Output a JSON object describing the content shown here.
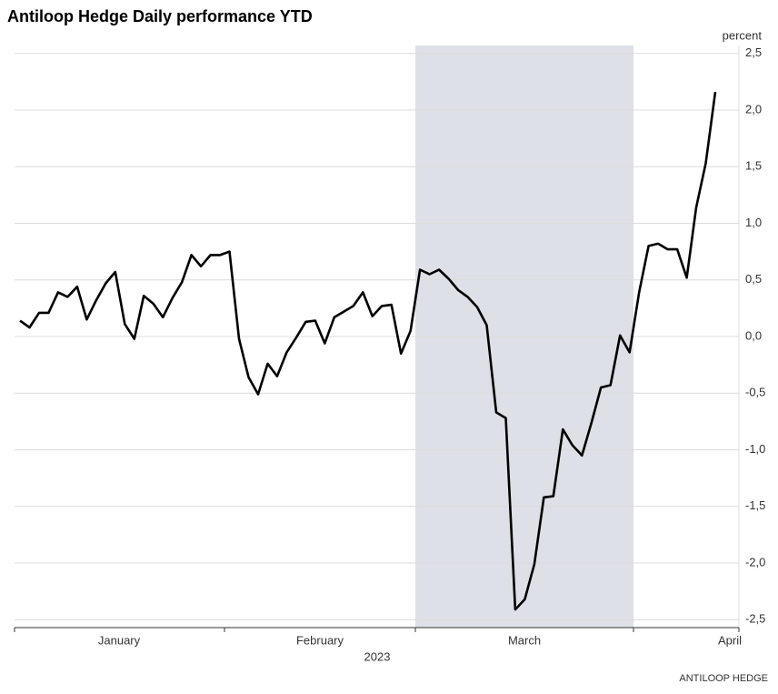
{
  "chart_data": {
    "type": "line",
    "title": "Antiloop Hedge Daily performance YTD",
    "y_axis_label": "percent",
    "x_labels": [
      "January",
      "February",
      "March",
      "April"
    ],
    "x_axis_label": "2023",
    "source": "ANTILOOP HEDGE",
    "color": "#000000",
    "grid": true,
    "ylim": [
      -2.57,
      2.57
    ],
    "yticks": [
      {
        "value": 2.5,
        "label": "2,5"
      },
      {
        "value": 2.0,
        "label": "2,0"
      },
      {
        "value": 1.5,
        "label": "1,5"
      },
      {
        "value": 1.0,
        "label": "1,0"
      },
      {
        "value": 0.5,
        "label": "0,5"
      },
      {
        "value": 0.0,
        "label": "0,0"
      },
      {
        "value": -0.5,
        "label": "-0,5"
      },
      {
        "value": -1.0,
        "label": "-1,0"
      },
      {
        "value": -1.5,
        "label": "-1,5"
      },
      {
        "value": -2.0,
        "label": "-2,0"
      },
      {
        "value": -2.5,
        "label": "-2,5"
      }
    ],
    "values": [
      0.14,
      0.08,
      0.21,
      0.21,
      0.39,
      0.35,
      0.44,
      0.15,
      0.32,
      0.47,
      0.57,
      0.11,
      -0.02,
      0.36,
      0.29,
      0.17,
      0.34,
      0.48,
      0.72,
      0.62,
      0.72,
      0.72,
      0.75,
      -0.02,
      -0.36,
      -0.51,
      -0.24,
      -0.35,
      -0.14,
      -0.01,
      0.13,
      0.14,
      -0.06,
      0.17,
      0.22,
      0.27,
      0.39,
      0.18,
      0.27,
      0.28,
      -0.15,
      0.05,
      0.59,
      0.55,
      0.59,
      0.51,
      0.41,
      0.35,
      0.26,
      0.1,
      -0.67,
      -0.72,
      -2.41,
      -2.32,
      -2.01,
      -1.42,
      -1.41,
      -0.82,
      -0.96,
      -1.05,
      -0.76,
      -0.45,
      -0.43,
      0.01,
      -0.14,
      0.39,
      0.8,
      0.82,
      0.77,
      0.77,
      0.52,
      1.14,
      1.53,
      2.16
    ]
  }
}
